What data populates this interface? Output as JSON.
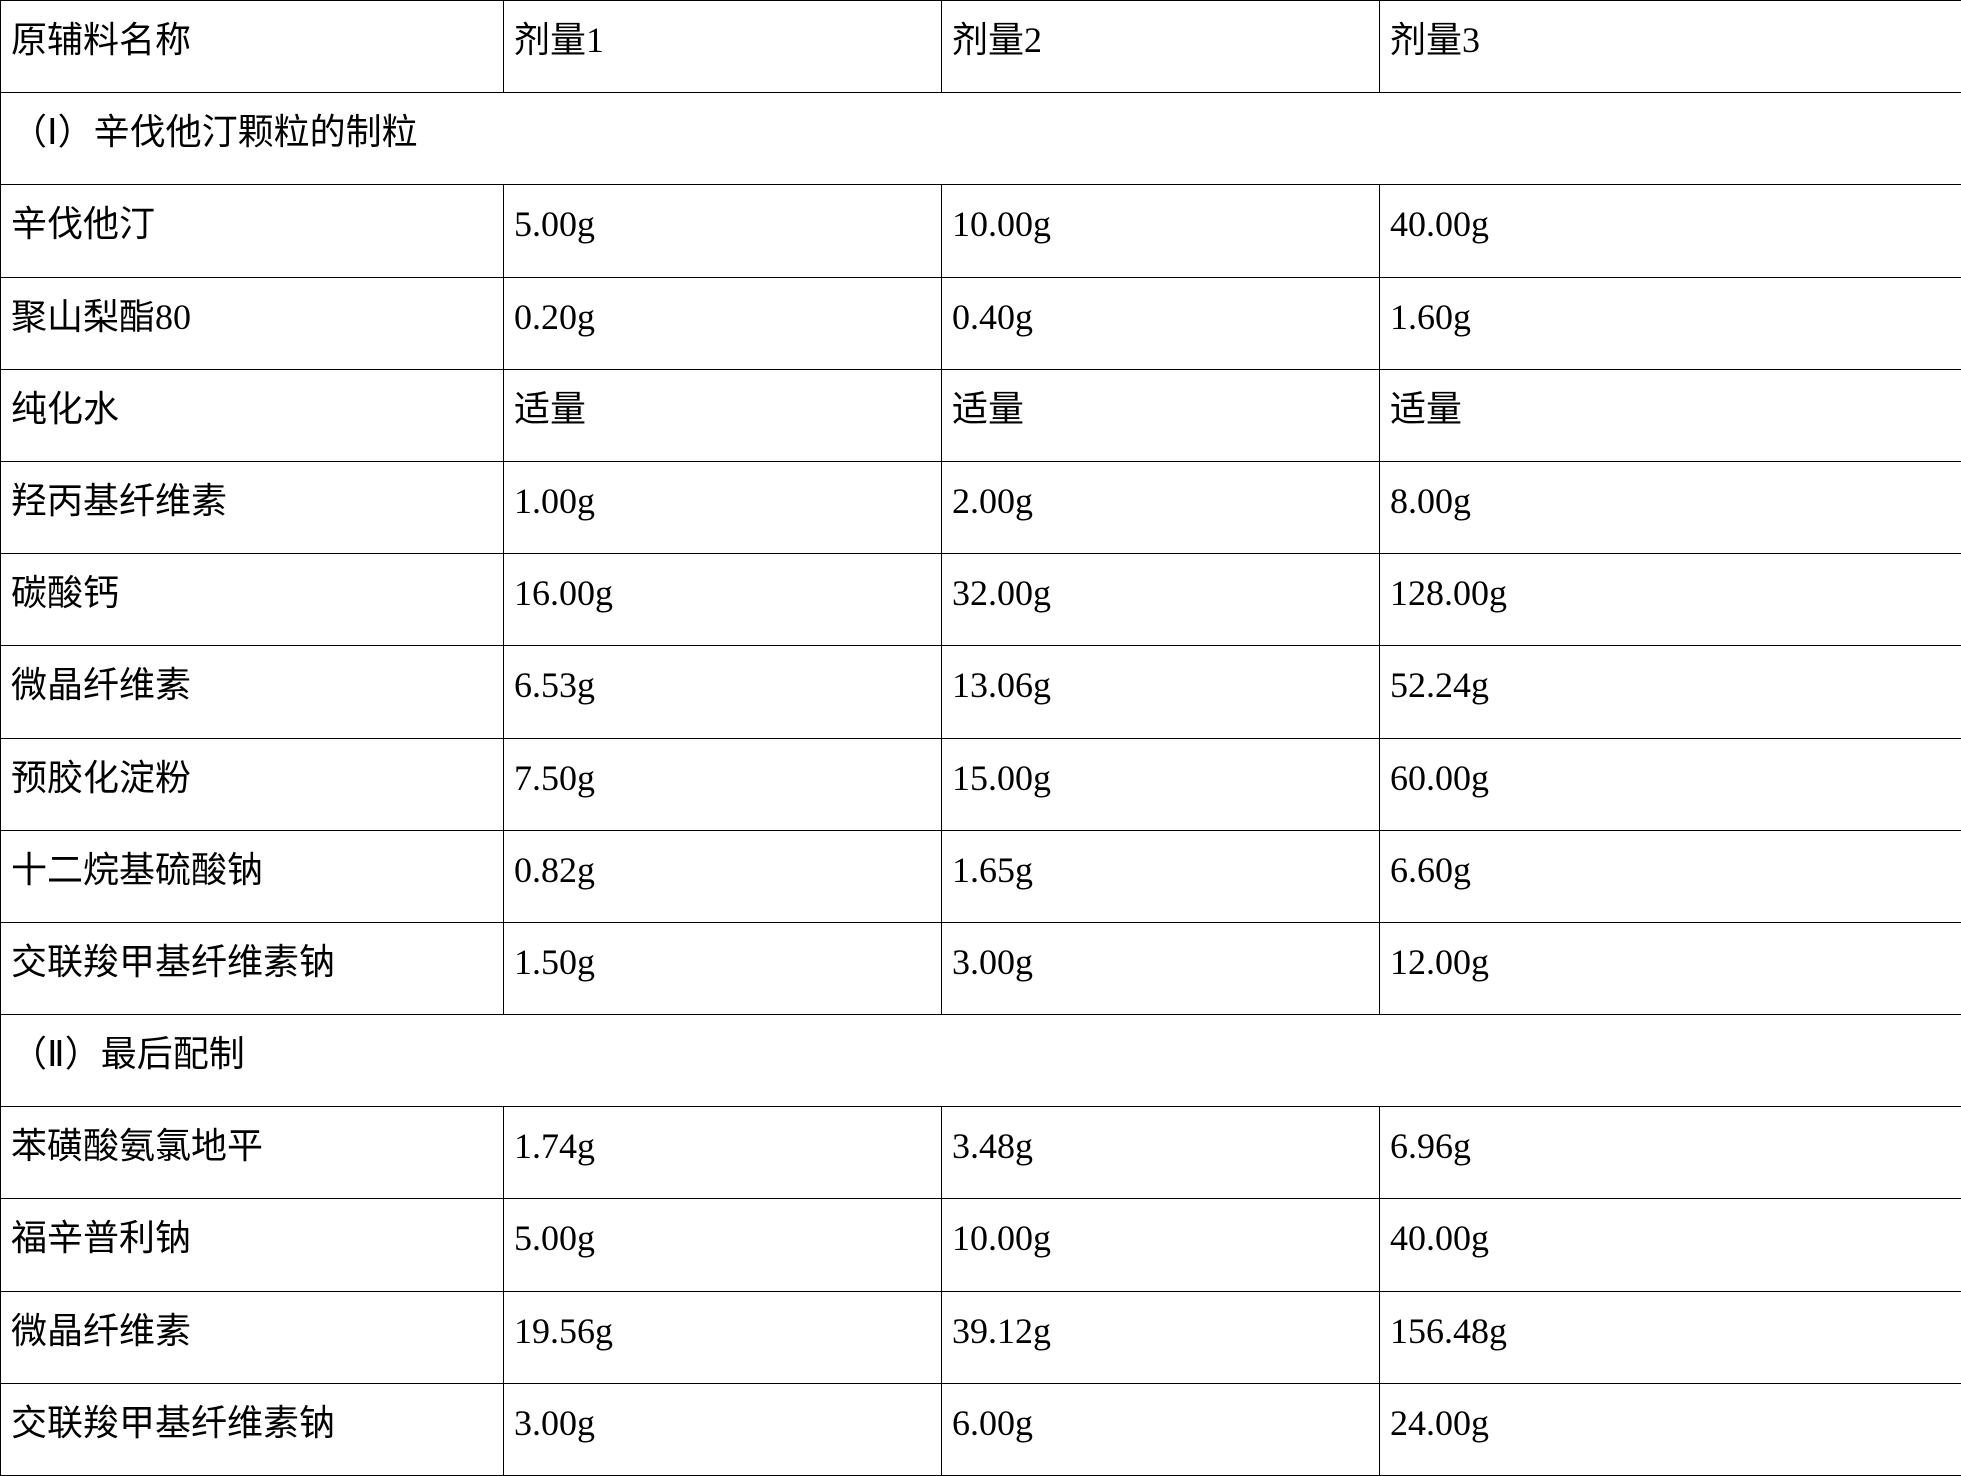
{
  "table": {
    "columns": [
      "原辅料名称",
      "剂量1",
      "剂量2",
      "剂量3"
    ],
    "section1_header": "（Ⅰ）辛伐他汀颗粒的制粒",
    "section2_header": "（Ⅱ）最后配制",
    "section1_rows": [
      [
        "辛伐他汀",
        "5.00g",
        "10.00g",
        "40.00g"
      ],
      [
        "聚山梨酯80",
        "0.20g",
        "0.40g",
        "1.60g"
      ],
      [
        "纯化水",
        "适量",
        "适量",
        "适量"
      ],
      [
        "羟丙基纤维素",
        "1.00g",
        "2.00g",
        "8.00g"
      ],
      [
        "碳酸钙",
        "16.00g",
        "32.00g",
        "128.00g"
      ],
      [
        "微晶纤维素",
        "6.53g",
        "13.06g",
        "52.24g"
      ],
      [
        "预胶化淀粉",
        "7.50g",
        "15.00g",
        "60.00g"
      ],
      [
        "十二烷基硫酸钠",
        "0.82g",
        "1.65g",
        "6.60g"
      ],
      [
        "交联羧甲基纤维素钠",
        "1.50g",
        "3.00g",
        "12.00g"
      ]
    ],
    "section2_rows": [
      [
        "苯磺酸氨氯地平",
        "1.74g",
        "3.48g",
        "6.96g"
      ],
      [
        "福辛普利钠",
        "5.00g",
        "10.00g",
        "40.00g"
      ],
      [
        "微晶纤维素",
        "19.56g",
        "39.12g",
        "156.48g"
      ],
      [
        "交联羧甲基纤维素钠",
        "3.00g",
        "6.00g",
        "24.00g"
      ]
    ],
    "border_color": "#000000",
    "background_color": "#ffffff",
    "font_size_pt": 27,
    "font_family": "SimSun"
  }
}
